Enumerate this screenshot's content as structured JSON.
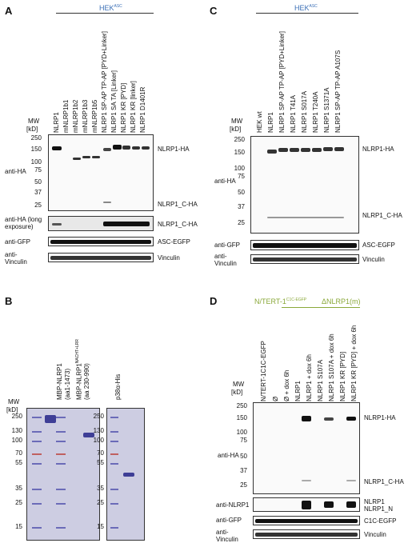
{
  "panels": {
    "A": {
      "letter": "A",
      "header": "HEK",
      "header_sup": "ASC",
      "lanes": [
        "NLRP1",
        "mNLRP1b1",
        "mNLRP1b2",
        "mNLRP1b3",
        "mNLRP1b5",
        "NLRP1 SP-AP TP-AP [PYD+Linker]",
        "NLRP1 SA TA [Linker]",
        "NLRP1 KR [PYD]",
        "NLRP1 KR [linker]",
        "NLRP1 D1401R"
      ],
      "mw_title": "MW",
      "mw_unit": "[kD]",
      "mw": [
        "250",
        "150",
        "100",
        "75",
        "50",
        "37",
        "25"
      ],
      "row_labels": [
        "anti-HA",
        "anti-HA (long exposure)",
        "anti-GFP",
        "anti-Vinculin"
      ],
      "band_labels": [
        "NLRP1-HA",
        "NLRP1_C-HA",
        "NLRP1_C-HA",
        "ASC-EGFP",
        "Vinculin"
      ]
    },
    "B": {
      "letter": "B",
      "mw_title": "MW",
      "mw_unit": "[kD]",
      "lane1": "MBP-NLRP1",
      "lane1_sub": "(aa1-1473)",
      "lane2": "MBP-NLRP1",
      "lane2_sup": "NACHT+LRR",
      "lane2_sub": "(aa 230-990)",
      "lane3": "p38α-His",
      "mw": [
        "250",
        "130",
        "100",
        "70",
        "55",
        "35",
        "25",
        "15"
      ],
      "mw2": [
        "250",
        "130",
        "100",
        "70",
        "55",
        "35",
        "25",
        "15"
      ]
    },
    "C": {
      "letter": "C",
      "header": "HEK",
      "header_sup": "ASC",
      "lanes": [
        "HEK wt",
        "NLRP1",
        "NLRP1 SP-AP TP-AP [PYD+Linker]",
        "NLRP1 T41A",
        "NLRP1 S017A",
        "NLRP1 T240A",
        "NLRP1 S1371A",
        "NLRP1 SP-AP TP-AP A107S"
      ],
      "mw_title": "MW",
      "mw_unit": "[kD]",
      "mw": [
        "250",
        "150",
        "100",
        "75",
        "50",
        "37",
        "25"
      ],
      "row_labels": [
        "anti-HA",
        "anti-GFP",
        "anti-Vinculin"
      ],
      "band_labels": [
        "NLRP1-HA",
        "NLRP1_C-HA",
        "ASC-EGFP",
        "Vinculin"
      ]
    },
    "D": {
      "letter": "D",
      "header": "N/TERT-1",
      "header_sup": "C1C-EGFP",
      "header2": "ΔNLRP1(m)",
      "lanes": [
        "N/TERT-1C1C-EGFP",
        "Ø",
        "Ø + dox 6h",
        "NLRP1",
        "NLRP1 + dox 6h",
        "NLRP1 S107A",
        "NLRP1 S107A + dox 6h",
        "NLRP1 KR [PYD]",
        "NLRP1 KR [PYD] + dox 6h"
      ],
      "mw_title": "MW",
      "mw_unit": "[kD]",
      "mw": [
        "250",
        "150",
        "100",
        "75",
        "50",
        "37",
        "25"
      ],
      "row_labels": [
        "anti-HA",
        "anti-NLRP1",
        "anti-GFP",
        "anti-Vinculin"
      ],
      "band_labels": [
        "NLRP1-HA",
        "NLRP1_C-HA",
        "NLRP1",
        "NLRP1_N",
        "C1C-EGFP",
        "Vinculin"
      ]
    }
  }
}
